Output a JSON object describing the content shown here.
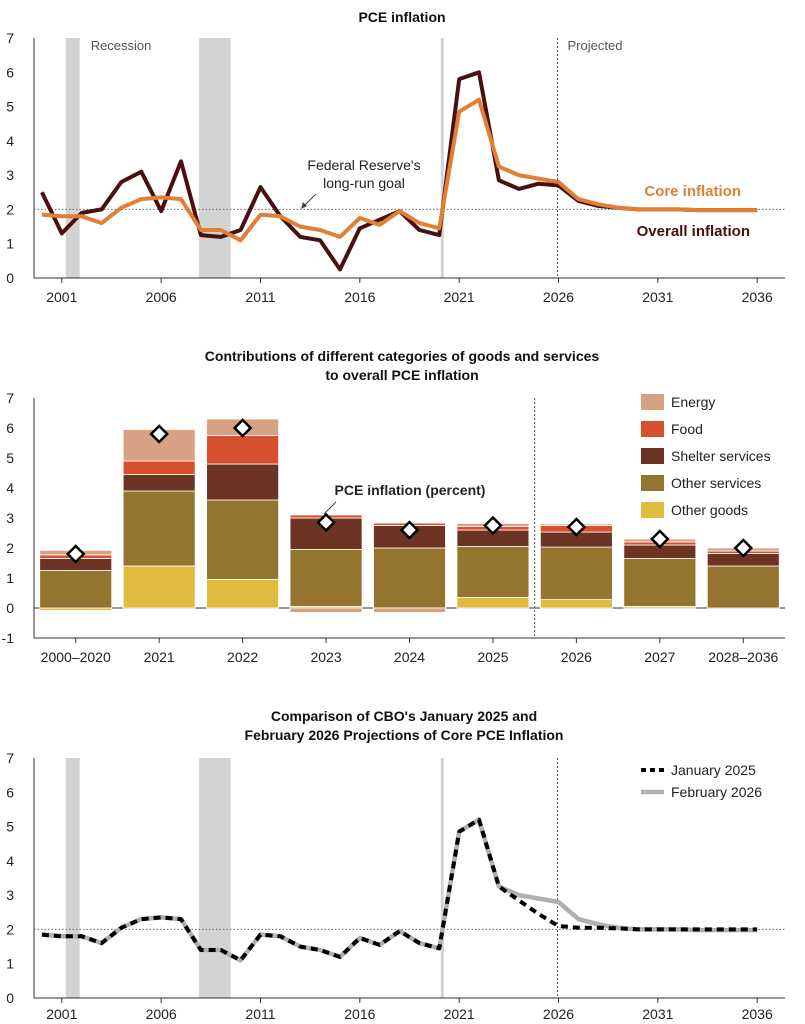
{
  "colors": {
    "overall": "#4a1010",
    "core": "#e27f34",
    "recession": "#d3d3d3",
    "energy": "#d9a184",
    "food": "#d8512e",
    "shelter": "#6e3423",
    "other_services": "#957430",
    "other_goods": "#e0bb40",
    "jan2025": "#000000",
    "feb2026": "#b0b0b0"
  },
  "chart_data": [
    {
      "type": "line",
      "title": "PCE inflation",
      "xlabel": "",
      "ylabel": "",
      "xlim": [
        1999.6,
        2037.4
      ],
      "ylim": [
        0,
        7
      ],
      "x_ticks": [
        "2001",
        "2006",
        "2011",
        "2016",
        "2021",
        "2026",
        "2031",
        "2036"
      ],
      "y_ticks": [
        "0",
        "1",
        "2",
        "3",
        "4",
        "5",
        "6",
        "7"
      ],
      "recession_label": "Recession",
      "projected_label": "Projected",
      "goal_annotation": [
        "Federal Reserve's",
        "long-run goal"
      ],
      "series": [
        {
          "name": "Core inflation",
          "x": [
            2000,
            2001,
            2002,
            2003,
            2004,
            2005,
            2006,
            2007,
            2008,
            2009,
            2010,
            2011,
            2012,
            2013,
            2014,
            2015,
            2016,
            2017,
            2018,
            2019,
            2020,
            2021,
            2022,
            2023,
            2024,
            2025,
            2026,
            2027,
            2028,
            2029,
            2030,
            2031,
            2032,
            2033,
            2034,
            2035,
            2036
          ],
          "values": [
            1.85,
            1.8,
            1.8,
            1.6,
            2.05,
            2.3,
            2.35,
            2.3,
            1.4,
            1.4,
            1.1,
            1.85,
            1.8,
            1.5,
            1.4,
            1.2,
            1.75,
            1.55,
            1.95,
            1.6,
            1.45,
            4.85,
            5.2,
            3.25,
            3.0,
            2.9,
            2.8,
            2.3,
            2.15,
            2.05,
            2.0,
            2.0,
            2.0,
            1.98,
            1.98,
            1.98,
            1.98
          ]
        },
        {
          "name": "Overall inflation",
          "x": [
            2000,
            2001,
            2002,
            2003,
            2004,
            2005,
            2006,
            2007,
            2008,
            2009,
            2010,
            2011,
            2012,
            2013,
            2014,
            2015,
            2016,
            2017,
            2018,
            2019,
            2020,
            2021,
            2022,
            2023,
            2024,
            2025,
            2026,
            2027,
            2028,
            2029,
            2030,
            2031,
            2032,
            2033,
            2034,
            2035,
            2036
          ],
          "values": [
            2.5,
            1.3,
            1.9,
            2.0,
            2.8,
            3.1,
            1.95,
            3.4,
            1.25,
            1.2,
            1.4,
            2.65,
            1.8,
            1.2,
            1.1,
            0.25,
            1.45,
            1.7,
            1.95,
            1.4,
            1.25,
            5.8,
            6.0,
            2.85,
            2.6,
            2.75,
            2.7,
            2.25,
            2.1,
            2.05,
            2.0,
            2.0,
            2.0,
            1.98,
            1.98,
            1.98,
            1.98
          ]
        }
      ],
      "recessions": [
        [
          2001.2,
          2001.9
        ],
        [
          2007.9,
          2009.5
        ]
      ],
      "covid_band": 2020.15,
      "projection_start": 2025.95,
      "reference_line": 2
    },
    {
      "type": "bar",
      "title": [
        "Contributions of different categories of goods and services",
        "to overall PCE inflation"
      ],
      "categories": [
        "2000–2020",
        "2021",
        "2022",
        "2023",
        "2024",
        "2025",
        "2026",
        "2027",
        "2028–2036"
      ],
      "ylim": [
        -1,
        7
      ],
      "y_ticks": [
        "-1",
        "0",
        "1",
        "2",
        "3",
        "4",
        "5",
        "6",
        "7"
      ],
      "legend": [
        "Energy",
        "Food",
        "Shelter services",
        "Other services",
        "Other goods"
      ],
      "annotation": "PCE inflation (percent)",
      "series": [
        {
          "name": "Other goods",
          "values": [
            -0.08,
            1.4,
            0.95,
            0.05,
            0.0,
            0.35,
            0.28,
            0.05,
            0.0
          ]
        },
        {
          "name": "Other services",
          "values": [
            1.25,
            2.5,
            2.65,
            1.9,
            2.0,
            1.7,
            1.75,
            1.6,
            1.4
          ]
        },
        {
          "name": "Shelter services",
          "values": [
            0.4,
            0.55,
            1.2,
            1.05,
            0.75,
            0.55,
            0.5,
            0.45,
            0.42
          ]
        },
        {
          "name": "Food",
          "values": [
            0.12,
            0.45,
            0.95,
            0.1,
            0.08,
            0.12,
            0.22,
            0.1,
            0.08
          ]
        },
        {
          "name": "Energy",
          "values": [
            0.15,
            1.05,
            0.55,
            -0.15,
            -0.15,
            0.1,
            0.05,
            0.1,
            0.1
          ]
        }
      ],
      "pce_inflation": [
        1.8,
        5.8,
        6.0,
        2.85,
        2.6,
        2.75,
        2.7,
        2.3,
        2.0
      ],
      "projection_divider_after": "2025"
    },
    {
      "type": "line",
      "title": [
        "Comparison of CBO's January 2025 and",
        "February 2026 Projections of Core PCE Inflation"
      ],
      "xlim": [
        1999.6,
        2037.4
      ],
      "ylim": [
        0,
        7
      ],
      "x_ticks": [
        "2001",
        "2006",
        "2011",
        "2016",
        "2021",
        "2026",
        "2031",
        "2036"
      ],
      "y_ticks": [
        "0",
        "1",
        "2",
        "3",
        "4",
        "5",
        "6",
        "7"
      ],
      "legend": [
        "January 2025",
        "February 2026"
      ],
      "series": [
        {
          "name": "February 2026",
          "x": [
            2000,
            2001,
            2002,
            2003,
            2004,
            2005,
            2006,
            2007,
            2008,
            2009,
            2010,
            2011,
            2012,
            2013,
            2014,
            2015,
            2016,
            2017,
            2018,
            2019,
            2020,
            2021,
            2022,
            2023,
            2024,
            2025,
            2026,
            2027,
            2028,
            2029,
            2030,
            2031,
            2032,
            2033,
            2034,
            2035,
            2036
          ],
          "values": [
            1.85,
            1.8,
            1.8,
            1.6,
            2.05,
            2.3,
            2.35,
            2.3,
            1.4,
            1.4,
            1.1,
            1.85,
            1.8,
            1.5,
            1.4,
            1.2,
            1.75,
            1.55,
            1.95,
            1.6,
            1.45,
            4.85,
            5.2,
            3.25,
            3.0,
            2.9,
            2.8,
            2.3,
            2.15,
            2.05,
            2.0,
            2.0,
            2.0,
            1.98,
            1.98,
            1.98,
            1.98
          ]
        },
        {
          "name": "January 2025",
          "x": [
            2000,
            2001,
            2002,
            2003,
            2004,
            2005,
            2006,
            2007,
            2008,
            2009,
            2010,
            2011,
            2012,
            2013,
            2014,
            2015,
            2016,
            2017,
            2018,
            2019,
            2020,
            2021,
            2022,
            2023,
            2024,
            2025,
            2026,
            2027,
            2028,
            2029,
            2030,
            2031,
            2032,
            2033,
            2034,
            2035,
            2036
          ],
          "values": [
            1.85,
            1.8,
            1.8,
            1.6,
            2.05,
            2.3,
            2.35,
            2.3,
            1.4,
            1.4,
            1.1,
            1.85,
            1.8,
            1.5,
            1.4,
            1.2,
            1.75,
            1.55,
            1.95,
            1.6,
            1.45,
            4.85,
            5.2,
            3.25,
            2.85,
            2.45,
            2.1,
            2.05,
            2.05,
            2.03,
            2.0,
            2.0,
            2.0,
            2.0,
            2.0,
            2.0,
            2.0
          ]
        }
      ],
      "recessions": [
        [
          2001.2,
          2001.9
        ],
        [
          2007.9,
          2009.5
        ]
      ],
      "covid_band": 2020.15,
      "projection_start": 2025.95,
      "reference_line": 2
    }
  ]
}
